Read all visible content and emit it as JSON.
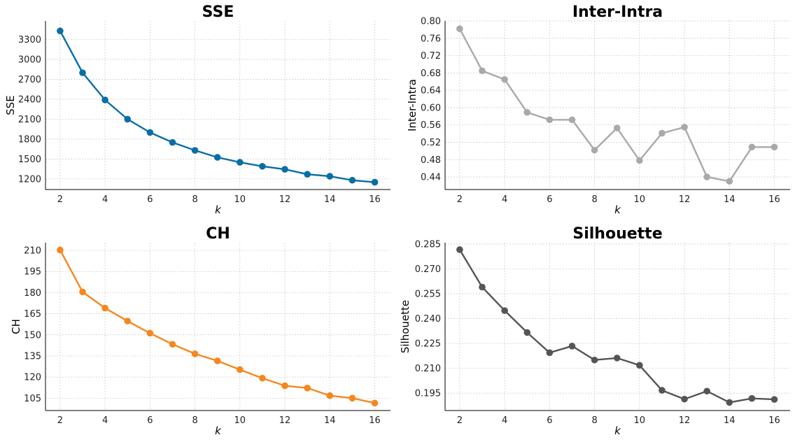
{
  "chart_data": [
    {
      "id": "sse",
      "type": "line",
      "title": "SSE",
      "xlabel": "k",
      "ylabel": "SSE",
      "color": "#0a6ea6",
      "x": [
        2,
        3,
        4,
        5,
        6,
        7,
        8,
        9,
        10,
        11,
        12,
        13,
        14,
        15,
        16
      ],
      "values": [
        3430,
        2800,
        2390,
        2100,
        1900,
        1750,
        1630,
        1525,
        1450,
        1390,
        1345,
        1270,
        1240,
        1180,
        1150
      ],
      "xlim": [
        1.35,
        16.7
      ],
      "ylim": [
        1040,
        3580
      ],
      "xticks": [
        2,
        4,
        6,
        8,
        10,
        12,
        14,
        16
      ],
      "yticks": [
        1200,
        1500,
        1800,
        2100,
        2400,
        2700,
        3000,
        3300
      ],
      "ytick_labels": [
        "1200",
        "1500",
        "1800",
        "2100",
        "2400",
        "2700",
        "3000",
        "3300"
      ],
      "grid": true
    },
    {
      "id": "inter-intra",
      "type": "line",
      "title": "Inter-Intra",
      "xlabel": "k",
      "ylabel": "Inter-Intra",
      "color": "#a9a9a9",
      "x": [
        2,
        3,
        4,
        5,
        6,
        7,
        8,
        9,
        10,
        11,
        12,
        13,
        14,
        15,
        16
      ],
      "values": [
        0.782,
        0.685,
        0.665,
        0.589,
        0.572,
        0.572,
        0.502,
        0.553,
        0.478,
        0.541,
        0.555,
        0.44,
        0.43,
        0.509,
        0.509
      ],
      "xlim": [
        1.35,
        16.7
      ],
      "ylim": [
        0.411,
        0.8
      ],
      "xticks": [
        2,
        4,
        6,
        8,
        10,
        12,
        14,
        16
      ],
      "yticks": [
        0.44,
        0.48,
        0.52,
        0.56,
        0.6,
        0.64,
        0.68,
        0.72,
        0.76,
        0.8
      ],
      "ytick_labels": [
        "0.44",
        "0.48",
        "0.52",
        "0.56",
        "0.60",
        "0.64",
        "0.68",
        "0.72",
        "0.76",
        "0.80"
      ],
      "grid": true
    },
    {
      "id": "ch",
      "type": "line",
      "title": "CH",
      "xlabel": "k",
      "ylabel": "CH",
      "color": "#f5871f",
      "x": [
        2,
        3,
        4,
        5,
        6,
        7,
        8,
        9,
        10,
        11,
        12,
        13,
        14,
        15,
        16
      ],
      "values": [
        210.3,
        180.5,
        169.0,
        159.8,
        151.2,
        143.3,
        136.5,
        131.5,
        125.3,
        119.2,
        113.8,
        112.2,
        106.8,
        105.0,
        101.5
      ],
      "xlim": [
        1.35,
        16.7
      ],
      "ylim": [
        96.2,
        215.5
      ],
      "xticks": [
        2,
        4,
        6,
        8,
        10,
        12,
        14,
        16
      ],
      "yticks": [
        105,
        120,
        135,
        150,
        165,
        180,
        195,
        210
      ],
      "ytick_labels": [
        "105",
        "120",
        "135",
        "150",
        "165",
        "180",
        "195",
        "210"
      ],
      "grid": true
    },
    {
      "id": "silhouette",
      "type": "line",
      "title": "Silhouette",
      "xlabel": "k",
      "ylabel": "Silhouette",
      "color": "#555555",
      "x": [
        2,
        3,
        4,
        5,
        6,
        7,
        8,
        9,
        10,
        11,
        12,
        13,
        14,
        15,
        16
      ],
      "values": [
        0.2816,
        0.259,
        0.2448,
        0.2316,
        0.2194,
        0.2234,
        0.215,
        0.2162,
        0.2118,
        0.1967,
        0.1914,
        0.1962,
        0.1894,
        0.1918,
        0.1912
      ],
      "xlim": [
        1.35,
        16.7
      ],
      "ylim": [
        0.1845,
        0.2858
      ],
      "xticks": [
        2,
        4,
        6,
        8,
        10,
        12,
        14,
        16
      ],
      "yticks": [
        0.195,
        0.21,
        0.225,
        0.24,
        0.255,
        0.27,
        0.285
      ],
      "ytick_labels": [
        "0.195",
        "0.210",
        "0.225",
        "0.240",
        "0.255",
        "0.270",
        "0.285"
      ],
      "grid": true
    }
  ]
}
